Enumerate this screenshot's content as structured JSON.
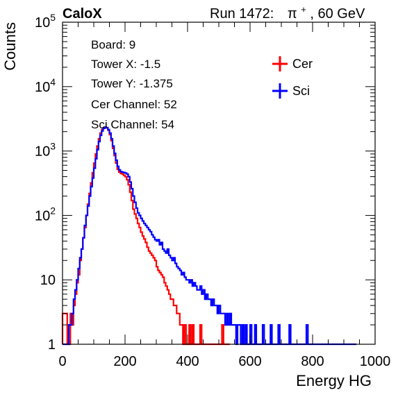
{
  "header": {
    "brand": "CaloX",
    "run": "Run 1472:",
    "beam_particle": "π",
    "beam_charge": "+",
    "beam_energy": ", 60 GeV"
  },
  "info_lines": [
    "Board: 9",
    "Tower X: -1.5",
    "Tower Y: -1.375",
    "Cer Channel: 52",
    "Sci Channel: 54"
  ],
  "colors": {
    "cer": "#ff0000",
    "sci": "#0000ff",
    "frame": "#000000"
  },
  "chart_data": {
    "type": "line",
    "subtype": "step-histogram",
    "xlabel": "Energy HG",
    "ylabel": "Counts",
    "xlim": [
      0,
      1000
    ],
    "ylim": [
      1,
      100000
    ],
    "yscale": "log",
    "x_ticks": [
      0,
      200,
      400,
      600,
      800,
      1000
    ],
    "x_tick_labels": [
      "0",
      "200",
      "400",
      "600",
      "800",
      "1000"
    ],
    "y_ticks": [
      1,
      10,
      100,
      1000,
      10000,
      100000
    ],
    "y_tick_labels": [
      {
        "base": "1",
        "exp": ""
      },
      {
        "base": "10",
        "exp": ""
      },
      {
        "base": "10",
        "exp": "2"
      },
      {
        "base": "10",
        "exp": "3"
      },
      {
        "base": "10",
        "exp": "4"
      },
      {
        "base": "10",
        "exp": "5"
      }
    ],
    "legend_position": "top-right",
    "series": [
      {
        "name": "Cer",
        "color": "#ff0000",
        "points": [
          [
            0,
            3
          ],
          [
            5,
            3
          ],
          [
            10,
            3
          ],
          [
            15,
            1
          ],
          [
            20,
            1
          ],
          [
            25,
            3
          ],
          [
            30,
            2
          ],
          [
            35,
            4
          ],
          [
            40,
            6
          ],
          [
            45,
            9
          ],
          [
            50,
            12
          ],
          [
            55,
            20
          ],
          [
            60,
            30
          ],
          [
            65,
            45
          ],
          [
            70,
            65
          ],
          [
            75,
            100
          ],
          [
            80,
            150
          ],
          [
            85,
            220
          ],
          [
            90,
            320
          ],
          [
            95,
            460
          ],
          [
            100,
            650
          ],
          [
            105,
            900
          ],
          [
            110,
            1200
          ],
          [
            115,
            1550
          ],
          [
            120,
            1900
          ],
          [
            125,
            2150
          ],
          [
            130,
            2300
          ],
          [
            135,
            2350
          ],
          [
            140,
            2300
          ],
          [
            145,
            2100
          ],
          [
            150,
            1800
          ],
          [
            155,
            1450
          ],
          [
            160,
            1100
          ],
          [
            165,
            850
          ],
          [
            170,
            650
          ],
          [
            175,
            520
          ],
          [
            180,
            470
          ],
          [
            185,
            450
          ],
          [
            190,
            440
          ],
          [
            195,
            420
          ],
          [
            200,
            400
          ],
          [
            205,
            360
          ],
          [
            210,
            300
          ],
          [
            215,
            230
          ],
          [
            220,
            170
          ],
          [
            225,
            125
          ],
          [
            230,
            105
          ],
          [
            235,
            90
          ],
          [
            240,
            75
          ],
          [
            245,
            65
          ],
          [
            250,
            55
          ],
          [
            255,
            48
          ],
          [
            260,
            43
          ],
          [
            265,
            38
          ],
          [
            270,
            32
          ],
          [
            275,
            28
          ],
          [
            280,
            26
          ],
          [
            285,
            24
          ],
          [
            290,
            22
          ],
          [
            295,
            20
          ],
          [
            300,
            16
          ],
          [
            305,
            14
          ],
          [
            310,
            13
          ],
          [
            315,
            12
          ],
          [
            320,
            11
          ],
          [
            325,
            9
          ],
          [
            330,
            8
          ],
          [
            335,
            7
          ],
          [
            340,
            6
          ],
          [
            345,
            5
          ],
          [
            350,
            5
          ],
          [
            355,
            4
          ],
          [
            360,
            4
          ],
          [
            365,
            3
          ],
          [
            370,
            3
          ],
          [
            375,
            2
          ],
          [
            380,
            2
          ],
          [
            385,
            1
          ],
          [
            390,
            2
          ],
          [
            395,
            1
          ],
          [
            400,
            1
          ],
          [
            405,
            2
          ],
          [
            410,
            1
          ],
          [
            415,
            2
          ],
          [
            420,
            1
          ],
          [
            425,
            1
          ],
          [
            430,
            1
          ],
          [
            435,
            1
          ],
          [
            440,
            2
          ],
          [
            445,
            1
          ],
          [
            450,
            1
          ],
          [
            455,
            1
          ],
          [
            460,
            1
          ],
          [
            465,
            1
          ],
          [
            470,
            1
          ],
          [
            475,
            1
          ],
          [
            480,
            1
          ],
          [
            485,
            1
          ],
          [
            490,
            1
          ],
          [
            495,
            1
          ],
          [
            500,
            1
          ],
          [
            505,
            1
          ],
          [
            510,
            2
          ],
          [
            515,
            1
          ],
          [
            520,
            1
          ],
          [
            525,
            1
          ],
          [
            530,
            1
          ]
        ]
      },
      {
        "name": "Sci",
        "color": "#0000ff",
        "points": [
          [
            0,
            1
          ],
          [
            5,
            1
          ],
          [
            10,
            1
          ],
          [
            15,
            1
          ],
          [
            20,
            2
          ],
          [
            25,
            2
          ],
          [
            30,
            3
          ],
          [
            35,
            5
          ],
          [
            40,
            7
          ],
          [
            45,
            10
          ],
          [
            50,
            15
          ],
          [
            55,
            22
          ],
          [
            60,
            30
          ],
          [
            65,
            45
          ],
          [
            70,
            70
          ],
          [
            75,
            100
          ],
          [
            80,
            140
          ],
          [
            85,
            200
          ],
          [
            90,
            280
          ],
          [
            95,
            380
          ],
          [
            100,
            540
          ],
          [
            105,
            760
          ],
          [
            110,
            1050
          ],
          [
            115,
            1400
          ],
          [
            120,
            1750
          ],
          [
            125,
            2050
          ],
          [
            130,
            2250
          ],
          [
            135,
            2350
          ],
          [
            140,
            2300
          ],
          [
            145,
            2150
          ],
          [
            150,
            1900
          ],
          [
            155,
            1550
          ],
          [
            160,
            1200
          ],
          [
            165,
            920
          ],
          [
            170,
            720
          ],
          [
            175,
            580
          ],
          [
            180,
            510
          ],
          [
            185,
            480
          ],
          [
            190,
            470
          ],
          [
            195,
            465
          ],
          [
            200,
            455
          ],
          [
            205,
            440
          ],
          [
            210,
            400
          ],
          [
            215,
            330
          ],
          [
            220,
            260
          ],
          [
            225,
            200
          ],
          [
            230,
            160
          ],
          [
            235,
            130
          ],
          [
            240,
            110
          ],
          [
            245,
            100
          ],
          [
            250,
            90
          ],
          [
            255,
            82
          ],
          [
            260,
            75
          ],
          [
            265,
            70
          ],
          [
            270,
            65
          ],
          [
            275,
            60
          ],
          [
            280,
            56
          ],
          [
            285,
            50
          ],
          [
            290,
            46
          ],
          [
            295,
            42
          ],
          [
            300,
            40
          ],
          [
            305,
            42
          ],
          [
            310,
            35
          ],
          [
            315,
            38
          ],
          [
            320,
            30
          ],
          [
            325,
            28
          ],
          [
            330,
            26
          ],
          [
            335,
            30
          ],
          [
            340,
            24
          ],
          [
            345,
            22
          ],
          [
            350,
            20
          ],
          [
            355,
            22
          ],
          [
            360,
            18
          ],
          [
            365,
            16
          ],
          [
            370,
            15
          ],
          [
            375,
            14
          ],
          [
            380,
            12
          ],
          [
            385,
            13
          ],
          [
            390,
            11
          ],
          [
            395,
            10
          ],
          [
            400,
            10
          ],
          [
            405,
            9
          ],
          [
            410,
            10
          ],
          [
            415,
            8
          ],
          [
            420,
            9
          ],
          [
            425,
            8
          ],
          [
            430,
            7
          ],
          [
            435,
            7
          ],
          [
            440,
            8
          ],
          [
            445,
            6
          ],
          [
            450,
            7
          ],
          [
            455,
            5
          ],
          [
            460,
            6
          ],
          [
            465,
            5
          ],
          [
            470,
            5
          ],
          [
            475,
            4
          ],
          [
            480,
            5
          ],
          [
            485,
            4
          ],
          [
            490,
            4
          ],
          [
            495,
            3
          ],
          [
            500,
            4
          ],
          [
            505,
            3
          ],
          [
            510,
            3
          ],
          [
            515,
            3
          ],
          [
            520,
            2
          ],
          [
            525,
            3
          ],
          [
            530,
            2
          ],
          [
            535,
            3
          ],
          [
            540,
            2
          ],
          [
            545,
            2
          ],
          [
            550,
            2
          ],
          [
            555,
            1
          ],
          [
            560,
            2
          ],
          [
            565,
            2
          ],
          [
            570,
            1
          ],
          [
            575,
            2
          ],
          [
            580,
            1
          ],
          [
            585,
            2
          ],
          [
            590,
            1
          ],
          [
            595,
            1
          ],
          [
            600,
            2
          ],
          [
            605,
            1
          ],
          [
            610,
            1
          ],
          [
            615,
            2
          ],
          [
            620,
            1
          ],
          [
            625,
            1
          ],
          [
            630,
            1
          ],
          [
            635,
            1
          ],
          [
            640,
            2
          ],
          [
            645,
            1
          ],
          [
            650,
            1
          ],
          [
            655,
            1
          ],
          [
            660,
            1
          ],
          [
            665,
            2
          ],
          [
            670,
            1
          ],
          [
            675,
            1
          ],
          [
            680,
            1
          ],
          [
            685,
            1
          ],
          [
            690,
            2
          ],
          [
            695,
            1
          ],
          [
            700,
            1
          ],
          [
            705,
            1
          ],
          [
            710,
            1
          ],
          [
            715,
            1
          ],
          [
            720,
            1
          ],
          [
            725,
            2
          ],
          [
            730,
            1
          ],
          [
            735,
            1
          ],
          [
            740,
            1
          ],
          [
            745,
            1
          ],
          [
            750,
            1
          ],
          [
            755,
            1
          ],
          [
            760,
            1
          ],
          [
            765,
            1
          ],
          [
            770,
            1
          ],
          [
            775,
            1
          ],
          [
            780,
            2
          ],
          [
            785,
            1
          ],
          [
            790,
            1
          ],
          [
            795,
            1
          ],
          [
            800,
            1
          ],
          [
            805,
            1
          ],
          [
            810,
            1
          ],
          [
            815,
            1
          ],
          [
            820,
            1
          ],
          [
            825,
            1
          ],
          [
            830,
            1
          ],
          [
            835,
            1
          ],
          [
            840,
            1
          ],
          [
            845,
            1
          ],
          [
            850,
            1
          ],
          [
            855,
            1
          ],
          [
            860,
            1
          ],
          [
            865,
            1
          ],
          [
            870,
            1
          ],
          [
            875,
            1
          ],
          [
            880,
            1
          ],
          [
            885,
            1
          ],
          [
            890,
            1
          ],
          [
            895,
            1
          ],
          [
            900,
            1
          ],
          [
            905,
            1
          ],
          [
            910,
            1
          ],
          [
            915,
            1
          ],
          [
            920,
            1
          ],
          [
            925,
            1
          ],
          [
            930,
            1
          ],
          [
            935,
            1
          ]
        ]
      }
    ]
  }
}
